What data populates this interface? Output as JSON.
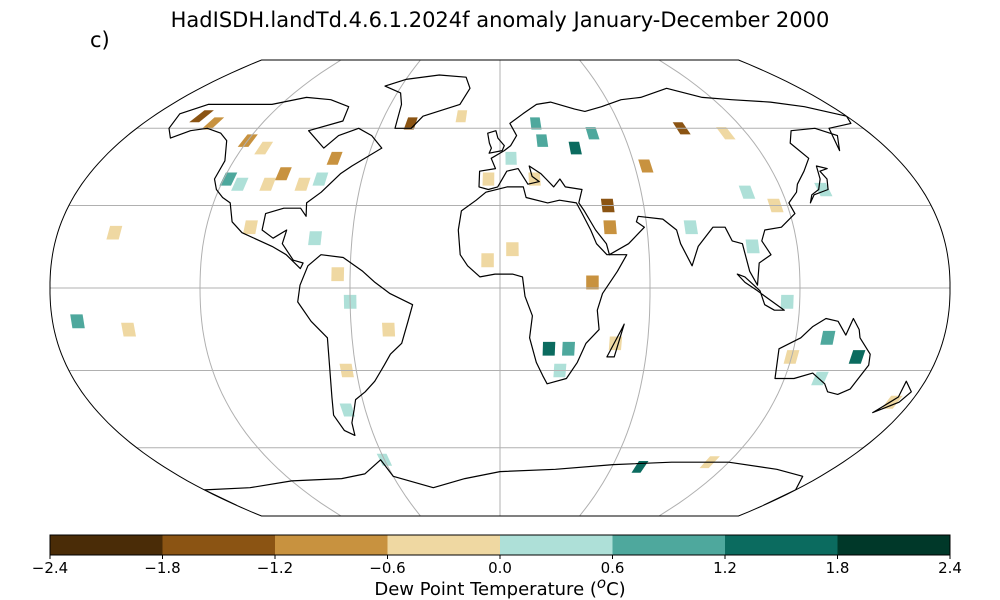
{
  "title": "HadISDH.landTd.4.6.1.2024f anomaly January-December 2000",
  "panel_label": "c)",
  "colorbar": {
    "label": "Dew Point Temperature (",
    "label_sup": "o",
    "label_tail": "C)",
    "ticks": [
      "−2.4",
      "−1.8",
      "−1.2",
      "−0.6",
      "0.0",
      "0.6",
      "1.2",
      "1.8",
      "2.4"
    ],
    "colors": [
      "#4a2c07",
      "#8b5413",
      "#c8923f",
      "#efd8a2",
      "#aee0d8",
      "#4ea89d",
      "#0b6b5f",
      "#003829"
    ]
  },
  "chart_data": {
    "type": "heatmap",
    "projection": "Robinson",
    "variable": "Dew Point Temperature anomaly",
    "units": "oC",
    "bins": [
      -2.4,
      -1.8,
      -1.2,
      -0.6,
      0.0,
      0.6,
      1.2,
      1.8,
      2.4
    ],
    "gridlines": true,
    "cells": [
      {
        "region": "Alaska",
        "lon": -155,
        "lat": 65,
        "v": -1.5
      },
      {
        "region": "Alaska",
        "lon": -145,
        "lat": 62,
        "v": -0.9
      },
      {
        "region": "Western Canada",
        "lon": -120,
        "lat": 55,
        "v": -0.9
      },
      {
        "region": "Western Canada",
        "lon": -110,
        "lat": 52,
        "v": -0.3
      },
      {
        "region": "Western USA",
        "lon": -118,
        "lat": 40,
        "v": 0.9
      },
      {
        "region": "Western USA",
        "lon": -112,
        "lat": 38,
        "v": 0.3
      },
      {
        "region": "Central USA",
        "lon": -100,
        "lat": 38,
        "v": -0.3
      },
      {
        "region": "Central USA",
        "lon": -95,
        "lat": 42,
        "v": -0.9
      },
      {
        "region": "Eastern USA",
        "lon": -85,
        "lat": 38,
        "v": -0.3
      },
      {
        "region": "Eastern USA",
        "lon": -78,
        "lat": 40,
        "v": 0.3
      },
      {
        "region": "Eastern Canada",
        "lon": -75,
        "lat": 48,
        "v": -0.9
      },
      {
        "region": "Mexico",
        "lon": -102,
        "lat": 22,
        "v": -0.3
      },
      {
        "region": "Caribbean",
        "lon": -75,
        "lat": 18,
        "v": 0.3
      },
      {
        "region": "Northern South America",
        "lon": -65,
        "lat": 5,
        "v": -0.3
      },
      {
        "region": "Amazon",
        "lon": -60,
        "lat": -5,
        "v": 0.3
      },
      {
        "region": "Brazil",
        "lon": -45,
        "lat": -15,
        "v": -0.3
      },
      {
        "region": "Argentina",
        "lon": -64,
        "lat": -30,
        "v": -0.3
      },
      {
        "region": "Patagonia",
        "lon": -68,
        "lat": -45,
        "v": 0.3
      },
      {
        "region": "Greenland",
        "lon": -45,
        "lat": 62,
        "v": -1.5
      },
      {
        "region": "Iceland",
        "lon": -20,
        "lat": 65,
        "v": -0.3
      },
      {
        "region": "Scandinavia",
        "lon": 18,
        "lat": 62,
        "v": 0.9
      },
      {
        "region": "Northern Europe",
        "lon": 20,
        "lat": 55,
        "v": 0.9
      },
      {
        "region": "Western Europe",
        "lon": 5,
        "lat": 48,
        "v": 0.3
      },
      {
        "region": "Iberia",
        "lon": -5,
        "lat": 40,
        "v": -0.3
      },
      {
        "region": "Mediterranean",
        "lon": 15,
        "lat": 40,
        "v": -0.3
      },
      {
        "region": "Eastern Europe",
        "lon": 35,
        "lat": 52,
        "v": 1.5
      },
      {
        "region": "Western Russia",
        "lon": 45,
        "lat": 58,
        "v": 0.9
      },
      {
        "region": "Middle East",
        "lon": 45,
        "lat": 30,
        "v": -1.5
      },
      {
        "region": "Arabia",
        "lon": 45,
        "lat": 22,
        "v": -0.9
      },
      {
        "region": "Central Asia",
        "lon": 65,
        "lat": 45,
        "v": -0.9
      },
      {
        "region": "Siberia",
        "lon": 90,
        "lat": 60,
        "v": -1.5
      },
      {
        "region": "Siberia",
        "lon": 110,
        "lat": 58,
        "v": -0.3
      },
      {
        "region": "India",
        "lon": 78,
        "lat": 22,
        "v": 0.3
      },
      {
        "region": "China",
        "lon": 105,
        "lat": 35,
        "v": 0.3
      },
      {
        "region": "Eastern China",
        "lon": 115,
        "lat": 30,
        "v": -0.3
      },
      {
        "region": "Japan",
        "lon": 138,
        "lat": 36,
        "v": 0.3
      },
      {
        "region": "Southeast Asia",
        "lon": 102,
        "lat": 15,
        "v": 0.3
      },
      {
        "region": "Sahel",
        "lon": 5,
        "lat": 14,
        "v": -0.3
      },
      {
        "region": "West Africa",
        "lon": -5,
        "lat": 10,
        "v": -0.3
      },
      {
        "region": "East Africa",
        "lon": 37,
        "lat": 2,
        "v": -0.9
      },
      {
        "region": "Southern Africa",
        "lon": 20,
        "lat": -22,
        "v": 1.5
      },
      {
        "region": "Southern Africa",
        "lon": 28,
        "lat": -22,
        "v": 0.9
      },
      {
        "region": "South Africa",
        "lon": 25,
        "lat": -30,
        "v": 0.3
      },
      {
        "region": "Madagascar",
        "lon": 47,
        "lat": -20,
        "v": -0.3
      },
      {
        "region": "Indonesia",
        "lon": 115,
        "lat": -5,
        "v": 0.3
      },
      {
        "region": "Northern Australia",
        "lon": 133,
        "lat": -18,
        "v": 0.9
      },
      {
        "region": "Eastern Australia",
        "lon": 147,
        "lat": -25,
        "v": 1.5
      },
      {
        "region": "Western Australia",
        "lon": 120,
        "lat": -25,
        "v": -0.3
      },
      {
        "region": "Southern Australia",
        "lon": 135,
        "lat": -33,
        "v": 0.3
      },
      {
        "region": "New Zealand",
        "lon": 172,
        "lat": -42,
        "v": -0.3
      },
      {
        "region": "Pacific Islands",
        "lon": -150,
        "lat": -15,
        "v": -0.3
      },
      {
        "region": "Pacific Islands",
        "lon": -170,
        "lat": -12,
        "v": 0.9
      },
      {
        "region": "Hawaii",
        "lon": -157,
        "lat": 20,
        "v": -0.3
      },
      {
        "region": "Antarctic Peninsula",
        "lon": -60,
        "lat": -65,
        "v": 0.3
      },
      {
        "region": "East Antarctica",
        "lon": 75,
        "lat": -68,
        "v": 1.5
      },
      {
        "region": "East Antarctica",
        "lon": 110,
        "lat": -66,
        "v": -0.3
      }
    ]
  }
}
